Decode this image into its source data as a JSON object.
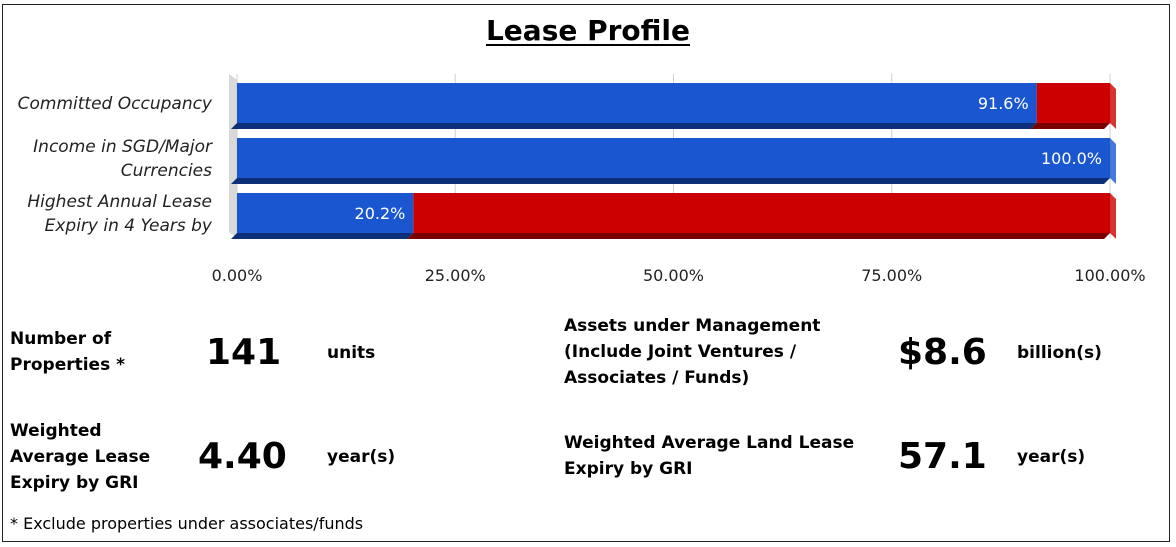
{
  "title": "Lease Profile",
  "chart_data": {
    "type": "bar",
    "orientation": "horizontal",
    "stacked": true,
    "title": "Lease Profile",
    "categories": [
      [
        "Committed Occupancy"
      ],
      [
        "Income in SGD/Major",
        "Currencies"
      ],
      [
        "Highest Annual Lease",
        "Expiry in 4 Years by"
      ]
    ],
    "series": [
      {
        "values": [
          91.6,
          100.0,
          20.2
        ],
        "color": "#1a56d0"
      },
      {
        "values": [
          8.4,
          0.0,
          79.8
        ],
        "color": "#cc0000"
      }
    ],
    "data_labels": [
      "91.6%",
      "100.0%",
      "20.2%"
    ],
    "xlim": [
      0,
      100
    ],
    "xticks": [
      "0.00%",
      "25.00%",
      "50.00%",
      "75.00%",
      "100.00%"
    ],
    "grid": true
  },
  "stats": {
    "properties": {
      "label": [
        "Number of",
        "Properties *"
      ],
      "value": "141",
      "unit": "units"
    },
    "aum": {
      "label": [
        "Assets under Management",
        "(Include Joint Ventures /",
        "Associates / Funds)"
      ],
      "value": "$8.6",
      "unit": "billion(s)"
    },
    "wale": {
      "label": [
        "Weighted",
        "Average Lease",
        "Expiry by GRI"
      ],
      "value": "4.40",
      "unit": "year(s)"
    },
    "land_lease": {
      "label": [
        "Weighted Average Land Lease",
        "Expiry by GRI"
      ],
      "value": "57.1",
      "unit": "year(s)"
    }
  },
  "footnote": "* Exclude properties under associates/funds"
}
